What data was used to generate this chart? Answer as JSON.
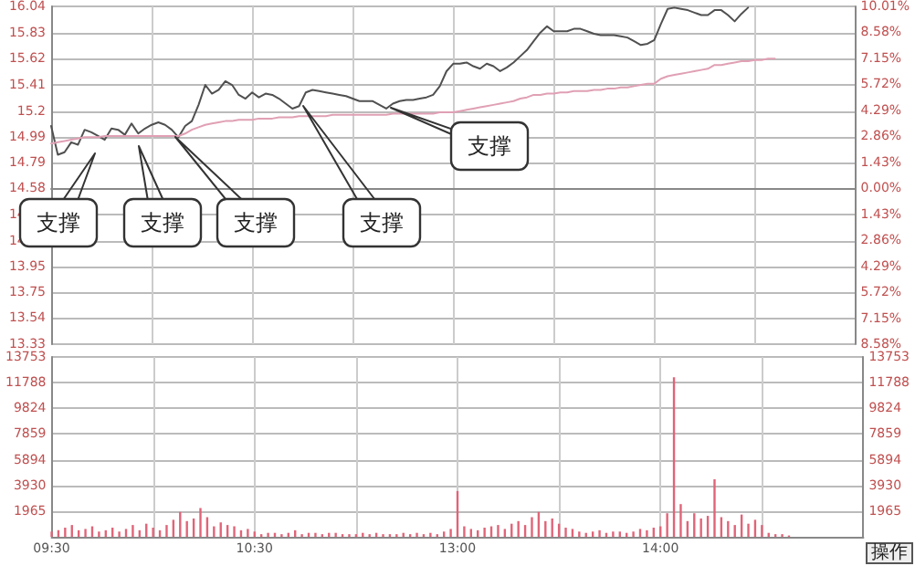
{
  "chart_data": [
    {
      "type": "line",
      "grid": true,
      "categories": [
        null,
        null,
        null,
        null,
        null,
        null,
        null,
        null,
        null,
        null,
        null,
        null,
        null,
        null,
        null,
        null,
        null,
        null,
        null,
        null,
        null,
        null,
        null,
        null,
        null,
        null,
        null,
        null,
        null,
        null,
        null,
        null,
        null,
        null,
        null,
        null,
        null,
        null,
        null,
        null,
        null,
        null,
        null,
        null,
        null,
        null,
        null,
        null,
        null,
        null,
        null,
        null,
        null,
        null,
        null,
        null,
        null,
        null,
        null,
        null,
        null,
        null,
        null,
        null,
        null,
        null,
        null,
        null,
        null,
        null,
        null,
        null,
        null,
        null,
        null,
        null,
        null,
        null,
        null,
        null,
        null,
        null,
        null,
        null,
        null,
        null,
        null,
        null,
        null,
        null,
        null,
        null,
        null,
        null,
        null,
        null,
        null,
        null,
        null,
        null,
        null,
        null,
        null,
        null,
        null,
        null,
        null,
        null,
        null,
        null,
        null,
        null,
        null,
        null,
        null,
        null,
        null,
        null,
        null,
        null,
        null
      ],
      "ylim": [
        13.33,
        16.04
      ],
      "yticks": [
        13.33,
        13.54,
        13.75,
        13.95,
        14.16,
        14.37,
        14.58,
        14.79,
        14.99,
        15.2,
        15.41,
        15.62,
        15.83,
        16.04
      ],
      "y2lim": [
        -8.58,
        10.01
      ],
      "y2ticks": [
        {
          "value": -8.58,
          "label": "8.58%"
        },
        {
          "value": -7.15,
          "label": "7.15%"
        },
        {
          "value": -5.72,
          "label": "5.72%"
        },
        {
          "value": -4.29,
          "label": "4.29%"
        },
        {
          "value": -2.86,
          "label": "2.86%"
        },
        {
          "value": -1.43,
          "label": "1.43%"
        },
        {
          "value": 0,
          "label": "0.00%"
        },
        {
          "value": 1.43,
          "label": "1.43%"
        },
        {
          "value": 2.86,
          "label": "2.86%"
        },
        {
          "value": 4.29,
          "label": "4.29%"
        },
        {
          "value": 5.72,
          "label": "5.72%"
        },
        {
          "value": 7.15,
          "label": "7.15%"
        },
        {
          "value": 8.58,
          "label": "8.58%"
        },
        {
          "value": 10.01,
          "label": "10.01%"
        }
      ],
      "series": [
        {
          "color": "#505050",
          "values": [
            15.08,
            14.85,
            14.87,
            14.95,
            14.93,
            15.05,
            15.03,
            15.0,
            14.97,
            15.06,
            15.05,
            15.01,
            15.1,
            15.02,
            15.06,
            15.09,
            15.11,
            15.09,
            15.05,
            14.99,
            15.08,
            15.12,
            15.25,
            15.41,
            15.34,
            15.37,
            15.44,
            15.41,
            15.33,
            15.3,
            15.35,
            15.31,
            15.34,
            15.33,
            15.3,
            15.26,
            15.22,
            15.24,
            15.35,
            15.37,
            15.36,
            15.35,
            15.34,
            15.33,
            15.32,
            15.3,
            15.28,
            15.28,
            15.28,
            15.25,
            15.22,
            15.26,
            15.28,
            15.29,
            15.29,
            15.3,
            15.31,
            15.33,
            15.4,
            15.52,
            15.58,
            15.58,
            15.59,
            15.56,
            15.54,
            15.58,
            15.56,
            15.52,
            15.55,
            15.59,
            15.64,
            15.69,
            15.76,
            15.83,
            15.88,
            15.84,
            15.84,
            15.84,
            15.86,
            15.86,
            15.84,
            15.82,
            15.81,
            15.81,
            15.81,
            15.8,
            15.79,
            15.76,
            15.73,
            15.74,
            15.77,
            15.9,
            16.02,
            16.03,
            16.02,
            16.01,
            15.99,
            15.97,
            15.97,
            16.01,
            16.01,
            15.97,
            15.92,
            15.98,
            16.03,
            null,
            null,
            null,
            null,
            null,
            null,
            null,
            null,
            null,
            null,
            null,
            null,
            null,
            null,
            null,
            null
          ]
        },
        {
          "color": "#e0a0b4",
          "values": [
            14.94,
            14.95,
            14.96,
            14.97,
            14.98,
            14.99,
            14.99,
            14.99,
            15.0,
            15.0,
            15.0,
            15.0,
            15.0,
            15.0,
            15.0,
            15.0,
            15.0,
            15.0,
            15.0,
            15.0,
            15.02,
            15.05,
            15.07,
            15.09,
            15.1,
            15.11,
            15.12,
            15.12,
            15.13,
            15.13,
            15.13,
            15.14,
            15.14,
            15.14,
            15.15,
            15.15,
            15.15,
            15.16,
            15.16,
            15.16,
            15.16,
            15.16,
            15.17,
            15.17,
            15.17,
            15.17,
            15.17,
            15.17,
            15.17,
            15.17,
            15.17,
            15.18,
            15.18,
            15.18,
            15.18,
            15.18,
            15.18,
            15.18,
            15.19,
            15.19,
            15.19,
            15.2,
            15.21,
            15.22,
            15.23,
            15.24,
            15.25,
            15.26,
            15.27,
            15.28,
            15.3,
            15.31,
            15.33,
            15.33,
            15.34,
            15.34,
            15.35,
            15.35,
            15.36,
            15.36,
            15.36,
            15.37,
            15.37,
            15.38,
            15.38,
            15.39,
            15.39,
            15.4,
            15.41,
            15.42,
            15.42,
            15.46,
            15.48,
            15.49,
            15.5,
            15.51,
            15.52,
            15.53,
            15.54,
            15.57,
            15.57,
            15.58,
            15.59,
            15.6,
            15.6,
            15.61,
            15.61,
            15.62,
            15.62,
            null,
            null,
            null,
            null,
            null,
            null,
            null,
            null,
            null,
            null,
            null,
            null
          ]
        }
      ],
      "annotations": [
        "支撑",
        "支撑",
        "支撑",
        "支撑",
        "支撑"
      ]
    },
    {
      "type": "bar",
      "grid": true,
      "color": "#e06478",
      "categories": [
        "09:30",
        null,
        null,
        null,
        null,
        null,
        null,
        null,
        null,
        null,
        null,
        null,
        null,
        null,
        null,
        null,
        null,
        null,
        null,
        null,
        null,
        null,
        null,
        null,
        null,
        null,
        null,
        null,
        null,
        null,
        "10:30",
        null,
        null,
        null,
        null,
        null,
        null,
        null,
        null,
        null,
        null,
        null,
        null,
        null,
        null,
        null,
        null,
        null,
        null,
        null,
        null,
        null,
        null,
        null,
        null,
        null,
        null,
        null,
        null,
        null,
        "13:00",
        null,
        null,
        null,
        null,
        null,
        null,
        null,
        null,
        null,
        null,
        null,
        null,
        null,
        null,
        null,
        null,
        null,
        null,
        null,
        null,
        null,
        null,
        null,
        null,
        null,
        null,
        null,
        null,
        null,
        "14:00",
        null,
        null,
        null,
        null,
        null,
        null,
        null,
        null,
        null,
        null,
        null,
        null,
        null,
        null,
        null,
        null,
        null,
        null,
        null,
        null,
        null,
        null,
        null,
        null,
        null,
        null,
        null,
        null,
        null,
        null
      ],
      "ylim": [
        0,
        13753
      ],
      "yticks": [
        1965,
        3930,
        5894,
        7859,
        9824,
        11788,
        13753
      ],
      "y2lim": [
        0,
        13753
      ],
      "y2ticks": [
        1965,
        3930,
        5894,
        7859,
        9824,
        11788,
        13753
      ],
      "values": [
        400,
        500,
        700,
        900,
        500,
        600,
        800,
        400,
        500,
        700,
        400,
        600,
        900,
        500,
        1000,
        700,
        500,
        900,
        1300,
        1900,
        1200,
        1400,
        2200,
        1500,
        800,
        1100,
        900,
        800,
        500,
        600,
        400,
        200,
        300,
        300,
        200,
        300,
        500,
        200,
        300,
        300,
        200,
        300,
        300,
        200,
        200,
        200,
        300,
        200,
        300,
        200,
        200,
        200,
        300,
        200,
        300,
        200,
        300,
        200,
        400,
        600,
        3500,
        800,
        600,
        500,
        700,
        800,
        900,
        600,
        1000,
        1200,
        900,
        1500,
        1900,
        1200,
        1400,
        1000,
        700,
        600,
        400,
        300,
        400,
        500,
        300,
        400,
        400,
        300,
        400,
        600,
        500,
        700,
        800,
        1800,
        12200,
        2500,
        1200,
        1800,
        1400,
        1600,
        4400,
        1500,
        1200,
        900,
        1700,
        1000,
        1300,
        900,
        300,
        200,
        200,
        100,
        null,
        null,
        null,
        null,
        null,
        null,
        null,
        null,
        null,
        null,
        null
      ],
      "annotations": [
        "操作"
      ]
    }
  ]
}
